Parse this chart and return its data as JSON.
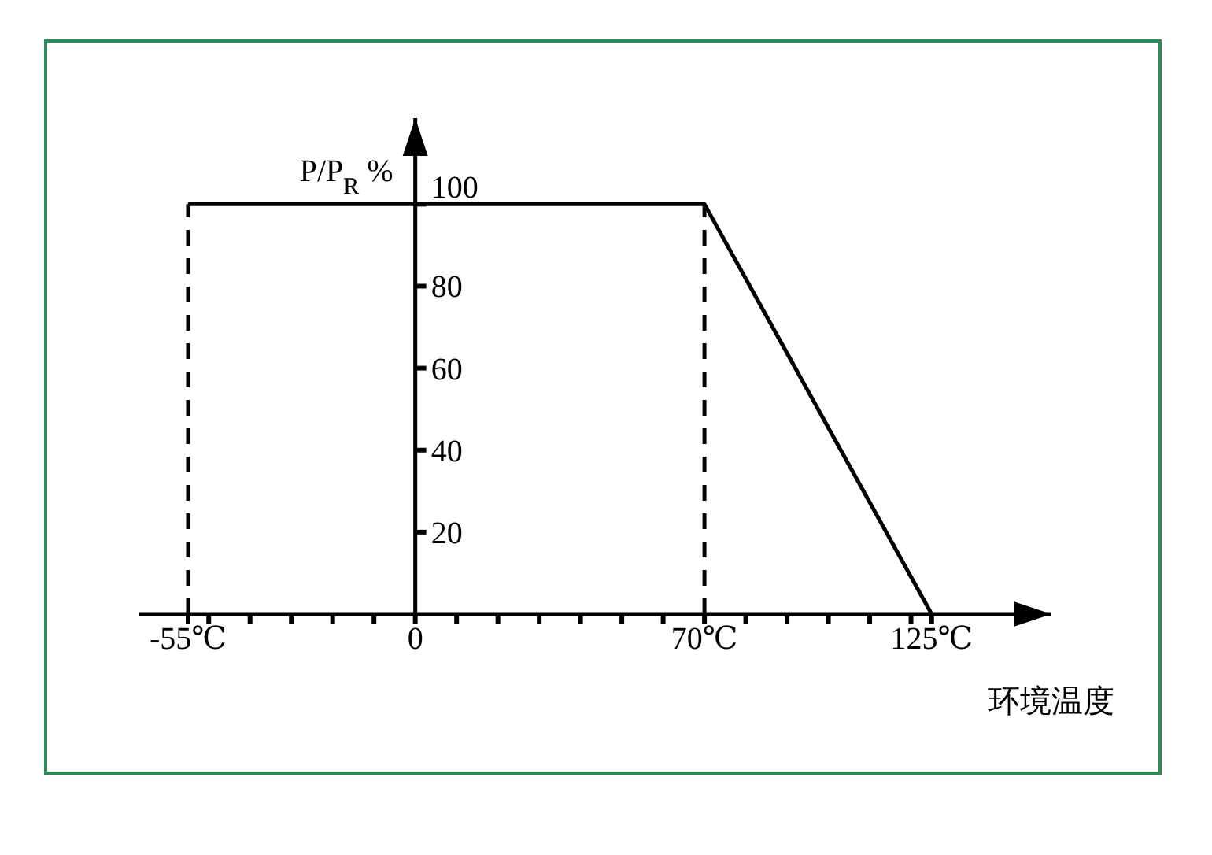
{
  "chart_data": {
    "type": "line",
    "xlabel": "环境温度",
    "ylabel": "P/P$_{R}$ %",
    "x": [
      -55,
      70,
      125
    ],
    "series": [
      {
        "color": "#000000",
        "values": [
          100,
          100,
          0
        ]
      }
    ],
    "xlim": [
      -67,
      154
    ],
    "ylim": [
      0,
      121
    ],
    "xticks": [
      {
        "value": -55,
        "label": "-55℃"
      },
      {
        "value": -50,
        "label": null
      },
      {
        "value": -40,
        "label": null
      },
      {
        "value": -30,
        "label": null
      },
      {
        "value": -20,
        "label": null
      },
      {
        "value": -10,
        "label": null
      },
      0,
      {
        "value": 10,
        "label": null
      },
      {
        "value": 20,
        "label": null
      },
      {
        "value": 30,
        "label": null
      },
      {
        "value": 40,
        "label": null
      },
      {
        "value": 50,
        "label": null
      },
      {
        "value": 60,
        "label": null
      },
      {
        "value": 70,
        "label": "70℃"
      },
      {
        "value": 80,
        "label": null
      },
      {
        "value": 90,
        "label": null
      },
      {
        "value": 100,
        "label": null
      },
      {
        "value": 110,
        "label": null
      },
      {
        "value": 120,
        "label": null
      },
      {
        "value": 125,
        "label": "125℃"
      }
    ],
    "yticks": [
      20,
      40,
      60,
      80,
      100
    ],
    "ref_lines": [
      {
        "axis": "x",
        "value": -55,
        "color": "#000000",
        "line_style": "dashed"
      },
      {
        "axis": "x",
        "value": 70,
        "color": "#000000",
        "line_style": "dashed"
      }
    ],
    "marker": "none",
    "line_style": "solid"
  }
}
